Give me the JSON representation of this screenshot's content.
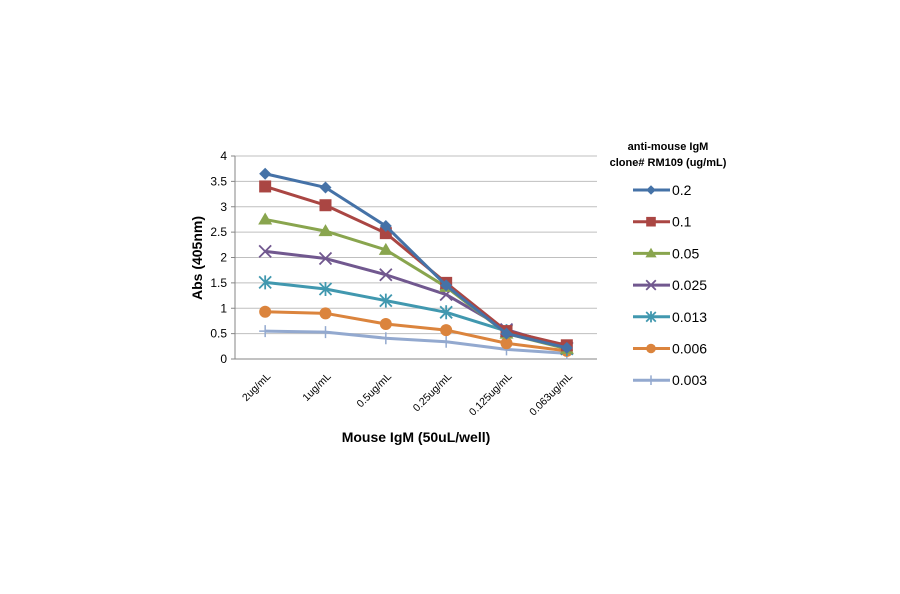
{
  "chart_data": {
    "type": "line",
    "title": "",
    "xlabel": "Mouse IgM (50uL/well)",
    "ylabel": "Abs (405nm)",
    "ylim": [
      0,
      4
    ],
    "yticks": [
      "0",
      "0.5",
      "1",
      "1.5",
      "2",
      "2.5",
      "3",
      "3.5",
      "4"
    ],
    "grid": true,
    "categories": [
      "2ug/mL",
      "1ug/mL",
      "0.5ug/mL",
      "0.25ug/mL",
      "0.125ug/mL",
      "0.063ug/mL"
    ],
    "legend_title": [
      "anti-mouse IgM",
      "clone# RM109 (ug/mL)"
    ],
    "legend_position": "right",
    "series": [
      {
        "name": "0.2",
        "color": "#4572A7",
        "marker": "diamond",
        "values": [
          3.65,
          3.38,
          2.62,
          1.45,
          0.5,
          0.22
        ]
      },
      {
        "name": "0.1",
        "color": "#AA4643",
        "marker": "square",
        "values": [
          3.4,
          3.03,
          2.48,
          1.5,
          0.55,
          0.27
        ]
      },
      {
        "name": "0.05",
        "color": "#89A54E",
        "marker": "triangle",
        "values": [
          2.75,
          2.52,
          2.15,
          1.42,
          0.5,
          0.2
        ]
      },
      {
        "name": "0.025",
        "color": "#71588F",
        "marker": "x",
        "values": [
          2.12,
          1.98,
          1.66,
          1.27,
          0.58,
          0.22
        ]
      },
      {
        "name": "0.013",
        "color": "#4198AF",
        "marker": "star",
        "values": [
          1.51,
          1.38,
          1.15,
          0.92,
          0.55,
          0.2
        ]
      },
      {
        "name": "0.006",
        "color": "#DB843D",
        "marker": "circle",
        "values": [
          0.93,
          0.9,
          0.69,
          0.57,
          0.31,
          0.16
        ]
      },
      {
        "name": "0.003",
        "color": "#93A9CF",
        "marker": "plus",
        "values": [
          0.55,
          0.53,
          0.41,
          0.34,
          0.19,
          0.11
        ]
      }
    ]
  }
}
